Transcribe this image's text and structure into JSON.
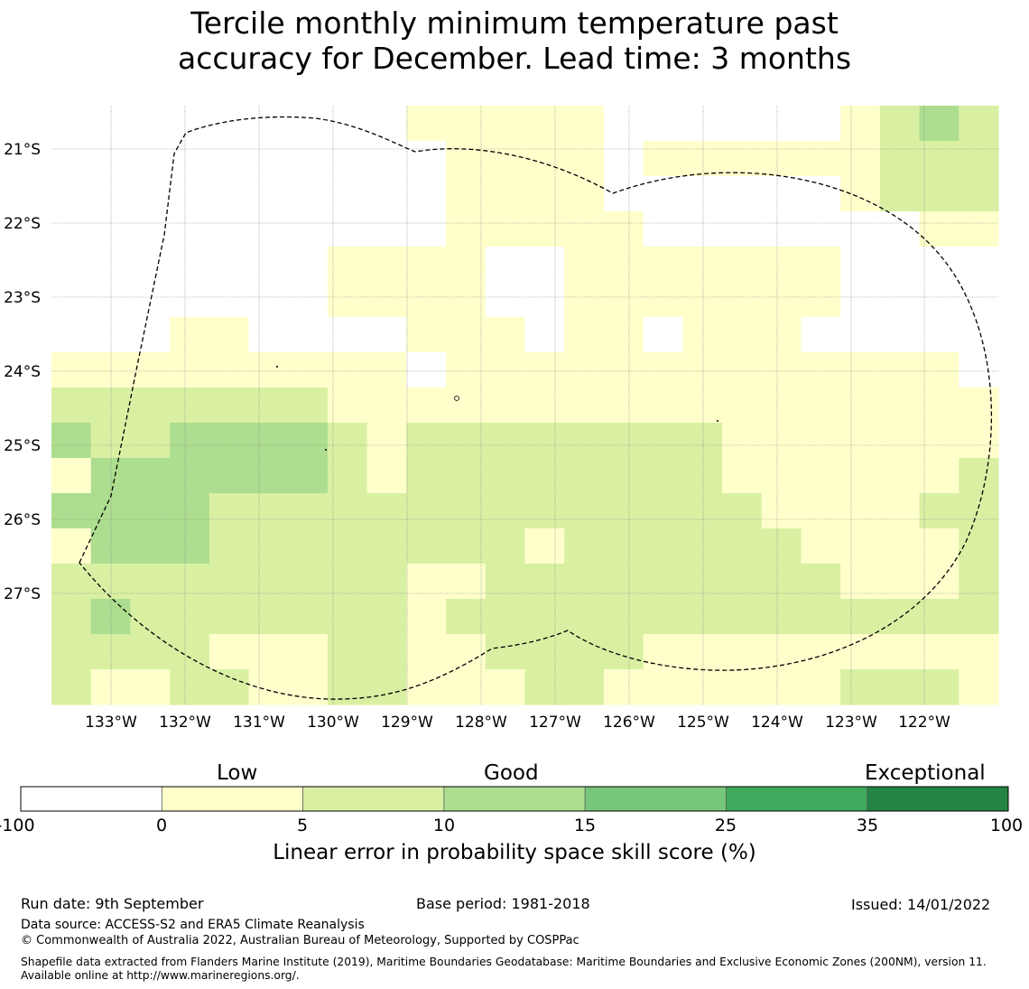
{
  "title": {
    "line1": "Tercile monthly minimum temperature past",
    "line2": "accuracy for December. Lead time: 3 months"
  },
  "map": {
    "lat_labels": [
      "21°S",
      "22°S",
      "23°S",
      "24°S",
      "25°S",
      "26°S",
      "27°S"
    ],
    "lon_labels": [
      "133°W",
      "132°W",
      "131°W",
      "130°W",
      "129°W",
      "128°W",
      "127°W",
      "126°W",
      "125°W",
      "124°W",
      "123°W",
      "122°W"
    ],
    "boundary_style": "dashed",
    "grid": true,
    "palette": [
      "#ffffff",
      "#ffffcc",
      "#d9f0a3",
      "#addd8e",
      "#78c679",
      "#41ab5d",
      "#238443"
    ],
    "cells": [
      [
        0,
        0,
        0,
        0,
        0,
        0,
        0,
        0,
        0,
        1,
        1,
        1,
        1,
        1,
        0,
        0,
        0,
        0,
        0,
        0,
        1,
        2,
        3,
        2
      ],
      [
        0,
        0,
        0,
        0,
        0,
        0,
        0,
        0,
        0,
        0,
        1,
        1,
        1,
        1,
        0,
        1,
        1,
        1,
        1,
        1,
        1,
        2,
        2,
        2
      ],
      [
        0,
        0,
        0,
        0,
        0,
        0,
        0,
        0,
        0,
        0,
        1,
        1,
        1,
        1,
        0,
        0,
        0,
        0,
        0,
        0,
        1,
        2,
        2,
        2
      ],
      [
        0,
        0,
        0,
        0,
        0,
        0,
        0,
        0,
        0,
        0,
        1,
        1,
        1,
        1,
        1,
        0,
        0,
        0,
        0,
        0,
        0,
        0,
        1,
        1
      ],
      [
        0,
        0,
        0,
        0,
        0,
        0,
        0,
        1,
        1,
        1,
        1,
        0,
        0,
        1,
        1,
        1,
        1,
        1,
        1,
        1,
        0,
        0,
        0,
        0
      ],
      [
        0,
        0,
        0,
        0,
        0,
        0,
        0,
        1,
        1,
        1,
        1,
        0,
        0,
        1,
        1,
        1,
        1,
        1,
        1,
        1,
        0,
        0,
        0,
        0
      ],
      [
        0,
        0,
        0,
        1,
        1,
        0,
        0,
        0,
        0,
        1,
        1,
        1,
        0,
        1,
        1,
        0,
        1,
        1,
        1,
        0,
        0,
        0,
        0,
        0
      ],
      [
        1,
        1,
        1,
        1,
        1,
        1,
        1,
        1,
        1,
        0,
        1,
        1,
        1,
        1,
        1,
        1,
        1,
        1,
        1,
        1,
        1,
        1,
        1,
        0
      ],
      [
        2,
        2,
        2,
        2,
        2,
        2,
        2,
        1,
        1,
        1,
        1,
        1,
        1,
        1,
        1,
        1,
        1,
        1,
        1,
        1,
        1,
        1,
        1,
        1
      ],
      [
        3,
        2,
        2,
        3,
        3,
        3,
        3,
        2,
        1,
        2,
        2,
        2,
        2,
        2,
        2,
        2,
        2,
        1,
        1,
        1,
        1,
        1,
        1,
        1
      ],
      [
        1,
        3,
        3,
        3,
        3,
        3,
        3,
        2,
        1,
        2,
        2,
        2,
        2,
        2,
        2,
        2,
        2,
        1,
        1,
        1,
        1,
        1,
        1,
        2
      ],
      [
        3,
        3,
        3,
        3,
        2,
        2,
        2,
        2,
        2,
        2,
        2,
        2,
        2,
        2,
        2,
        2,
        2,
        2,
        1,
        1,
        1,
        1,
        2,
        2
      ],
      [
        1,
        3,
        3,
        3,
        2,
        2,
        2,
        2,
        2,
        2,
        2,
        2,
        1,
        2,
        2,
        2,
        2,
        2,
        2,
        1,
        1,
        1,
        1,
        2
      ],
      [
        2,
        2,
        2,
        2,
        2,
        2,
        2,
        2,
        2,
        1,
        1,
        2,
        2,
        2,
        2,
        2,
        2,
        2,
        2,
        2,
        1,
        1,
        1,
        2
      ],
      [
        2,
        3,
        2,
        2,
        2,
        2,
        2,
        2,
        2,
        1,
        2,
        2,
        2,
        2,
        2,
        2,
        2,
        2,
        2,
        2,
        2,
        2,
        2,
        2
      ],
      [
        2,
        2,
        2,
        2,
        1,
        1,
        1,
        2,
        2,
        1,
        1,
        2,
        2,
        2,
        2,
        1,
        1,
        1,
        1,
        1,
        1,
        1,
        1,
        1
      ],
      [
        2,
        1,
        1,
        2,
        2,
        1,
        1,
        2,
        2,
        1,
        1,
        1,
        2,
        2,
        1,
        1,
        1,
        1,
        1,
        1,
        2,
        2,
        2,
        1
      ]
    ]
  },
  "colorbar": {
    "categories": [
      "Low",
      "Good",
      "Exceptional"
    ],
    "ticks": [
      "-100",
      "0",
      "5",
      "10",
      "15",
      "25",
      "35",
      "100"
    ],
    "bounds": [
      -100,
      0,
      5,
      10,
      15,
      25,
      35,
      100
    ],
    "label": "Linear error in probability space skill score (%)"
  },
  "footer": {
    "run_date": "Run date: 9th September",
    "base_period": "Base period: 1981-2018",
    "issued": "Issued: 14/01/2022",
    "data_source": "Data source: ACCESS-S2 and ERA5 Climate Reanalysis",
    "copyright": "© Commonwealth of Australia 2022, Australian Bureau of Meteorology, Supported by COSPPac",
    "shapefile": "Shapefile data extracted from Flanders Marine Institute (2019), Maritime Boundaries Geodatabase: Maritime Boundaries and Exclusive Economic Zones (200NM), version 11. Available online at http://www.marineregions.org/."
  }
}
